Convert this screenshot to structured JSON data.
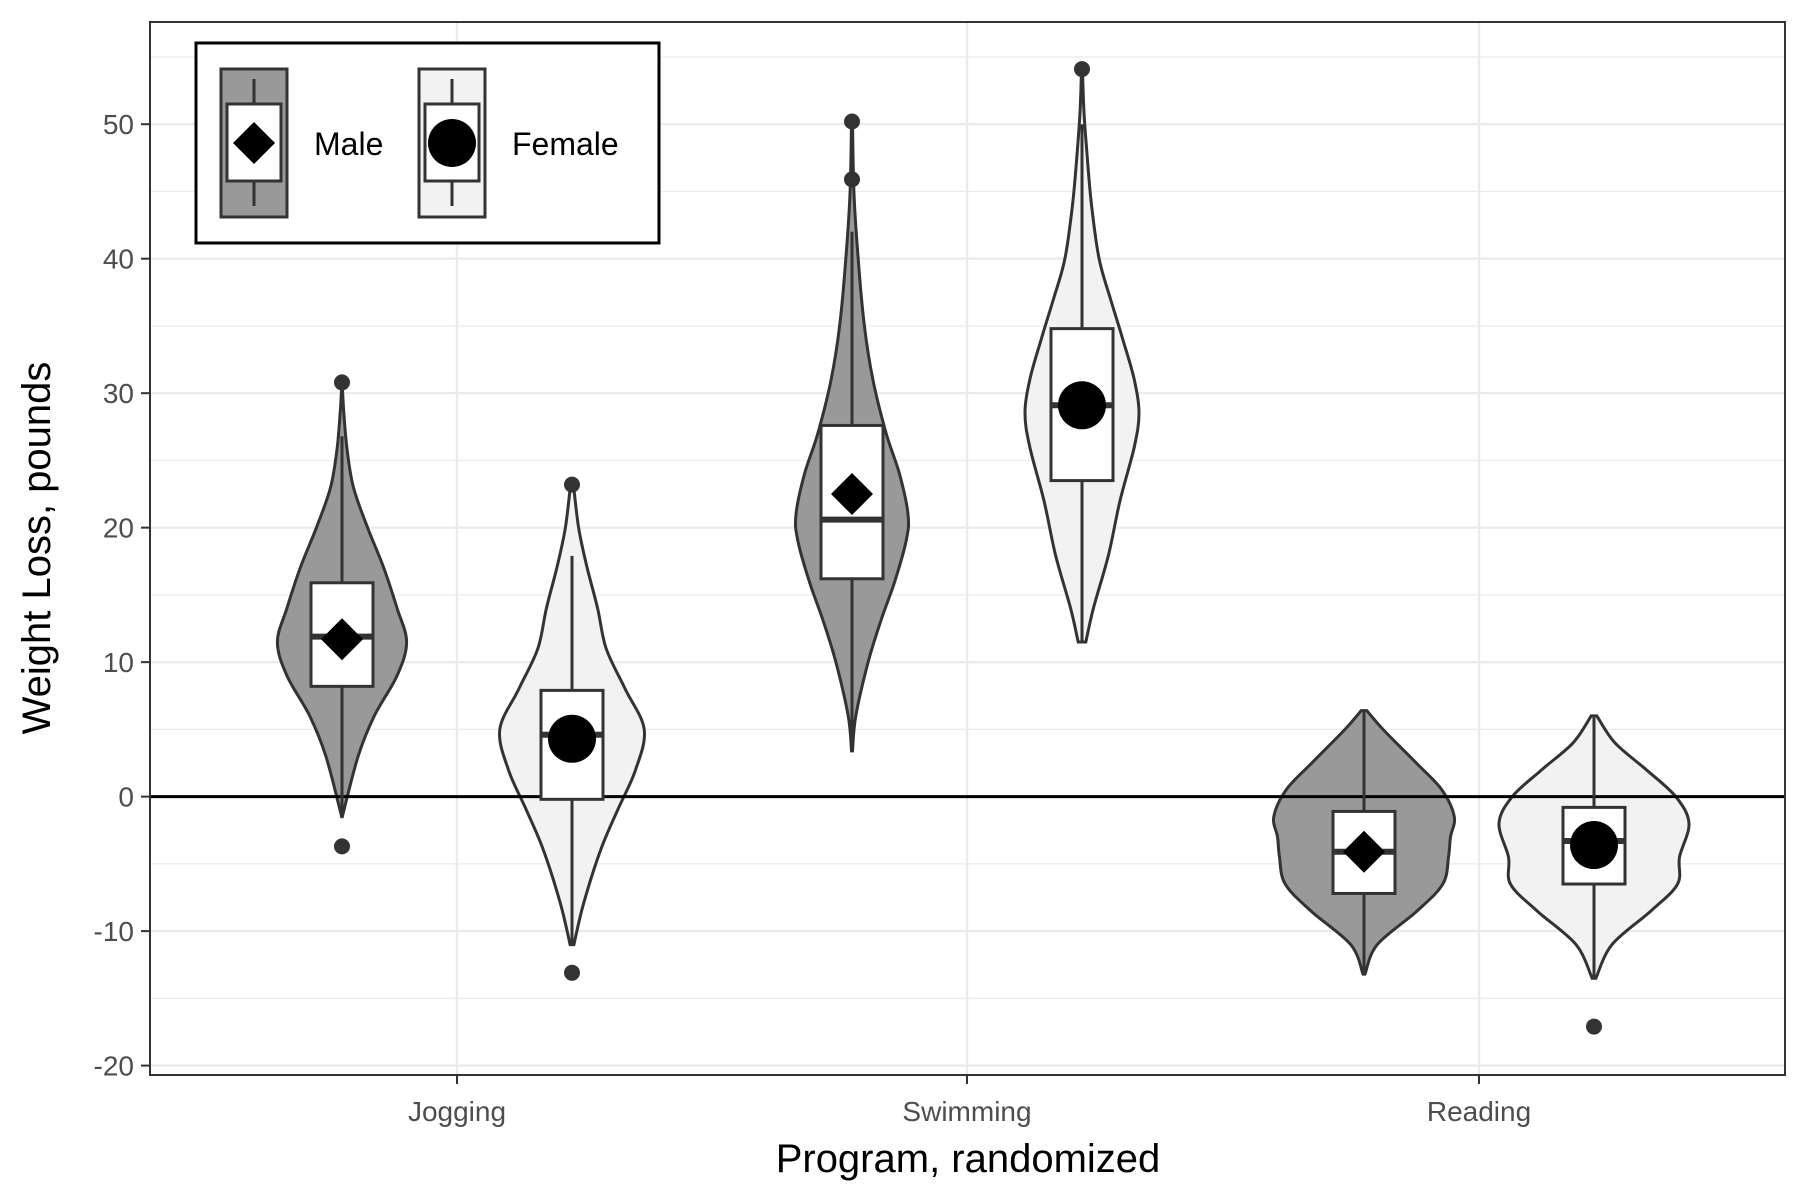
{
  "chart_data": {
    "type": "violin",
    "xlabel": "Program, randomized",
    "ylabel": "Weight Loss, pounds",
    "categories": [
      "Jogging",
      "Swimming",
      "Reading"
    ],
    "ylim": [
      -20.7,
      57.6
    ],
    "yticks": [
      -20,
      -10,
      0,
      10,
      20,
      30,
      40,
      50
    ],
    "ytick_labels": [
      "-20",
      "-10",
      "0",
      "10",
      "20",
      "30",
      "40",
      "50"
    ],
    "reference_line_y": 0,
    "grid": true,
    "legend": {
      "placement": "top-left",
      "entries": [
        {
          "label": "Male",
          "marker": "diamond"
        },
        {
          "label": "Female",
          "marker": "circle"
        }
      ]
    },
    "series": [
      {
        "name": "Male",
        "fill": "#999999",
        "marker": "diamond",
        "groups": [
          {
            "category": "Jogging",
            "mean": 11.7,
            "box": {
              "q1": 8.2,
              "median": 11.9,
              "q3": 15.9,
              "whisker_low": -1.2,
              "whisker_high": 26.8
            },
            "outliers": [
              30.8,
              -3.7
            ],
            "violin": {
              "min": -1.5,
              "max": 30.8,
              "y": [
                -1.5,
                3,
                6,
                9,
                11.5,
                14,
                17,
                20,
                23,
                26,
                29,
                30.8
              ],
              "width": [
                0.003,
                0.17,
                0.34,
                0.58,
                0.68,
                0.58,
                0.44,
                0.27,
                0.12,
                0.05,
                0.015,
                0.002
              ]
            }
          },
          {
            "category": "Swimming",
            "mean": 22.5,
            "box": {
              "q1": 16.2,
              "median": 20.6,
              "q3": 27.6,
              "whisker_low": 3.4,
              "whisker_high": 42
            },
            "outliers": [
              45.9,
              50.2
            ],
            "violin": {
              "min": 3.4,
              "max": 50.2,
              "y": [
                3.4,
                6,
                10,
                13,
                16,
                19,
                21,
                24,
                27,
                31,
                35,
                40,
                45,
                50.2
              ],
              "width": [
                0.005,
                0.04,
                0.17,
                0.3,
                0.45,
                0.57,
                0.59,
                0.5,
                0.36,
                0.22,
                0.13,
                0.065,
                0.02,
                0.005
              ]
            }
          },
          {
            "category": "Reading",
            "mean": -4.1,
            "box": {
              "q1": -7.2,
              "median": -4.1,
              "q3": -1.1,
              "whisker_low": -13,
              "whisker_high": 6.3
            },
            "outliers": [],
            "violin": {
              "min": -13.2,
              "max": 6.4,
              "y": [
                -13.2,
                -11,
                -8.5,
                -6.5,
                -4.5,
                -3,
                -1.5,
                0.5,
                2.5,
                5,
                6.4
              ],
              "width": [
                0.01,
                0.14,
                0.56,
                0.83,
                0.89,
                0.91,
                0.95,
                0.82,
                0.55,
                0.2,
                0.03
              ]
            }
          }
        ]
      },
      {
        "name": "Female",
        "fill": "#f2f2f2",
        "marker": "circle",
        "groups": [
          {
            "category": "Jogging",
            "mean": 4.3,
            "box": {
              "q1": -0.2,
              "median": 4.6,
              "q3": 7.9,
              "whisker_low": -11,
              "whisker_high": 17.9
            },
            "outliers": [
              23.2,
              -13.1
            ],
            "violin": {
              "min": -11,
              "max": 23.2,
              "y": [
                -11,
                -8,
                -4,
                -1,
                2,
                5,
                8,
                11,
                14,
                17,
                20,
                23.2
              ],
              "width": [
                0.02,
                0.12,
                0.3,
                0.48,
                0.67,
                0.76,
                0.56,
                0.36,
                0.27,
                0.16,
                0.07,
                0.015
              ]
            }
          },
          {
            "category": "Swimming",
            "mean": 29.1,
            "box": {
              "q1": 23.5,
              "median": 29.1,
              "q3": 34.8,
              "whisker_low": 11.5,
              "whisker_high": 50
            },
            "outliers": [
              54.1
            ],
            "violin": {
              "min": 11.5,
              "max": 54.1,
              "y": [
                11.5,
                14,
                18,
                22,
                26,
                28.5,
                31,
                34,
                37,
                40,
                44,
                48,
                51,
                54.1
              ],
              "width": [
                0.04,
                0.12,
                0.28,
                0.4,
                0.55,
                0.6,
                0.55,
                0.43,
                0.3,
                0.18,
                0.1,
                0.05,
                0.02,
                0.005
              ]
            }
          },
          {
            "category": "Reading",
            "mean": -3.6,
            "box": {
              "q1": -6.5,
              "median": -3.3,
              "q3": -0.8,
              "whisker_low": -13.5,
              "whisker_high": 5.9
            },
            "outliers": [
              -17.1
            ],
            "violin": {
              "min": -13.5,
              "max": 6,
              "y": [
                -13.5,
                -11,
                -8.5,
                -6.5,
                -4.5,
                -2,
                0,
                2,
                4,
                6
              ],
              "width": [
                0.02,
                0.19,
                0.6,
                0.88,
                0.9,
                1.0,
                0.86,
                0.55,
                0.22,
                0.03
              ]
            }
          }
        ]
      }
    ]
  }
}
